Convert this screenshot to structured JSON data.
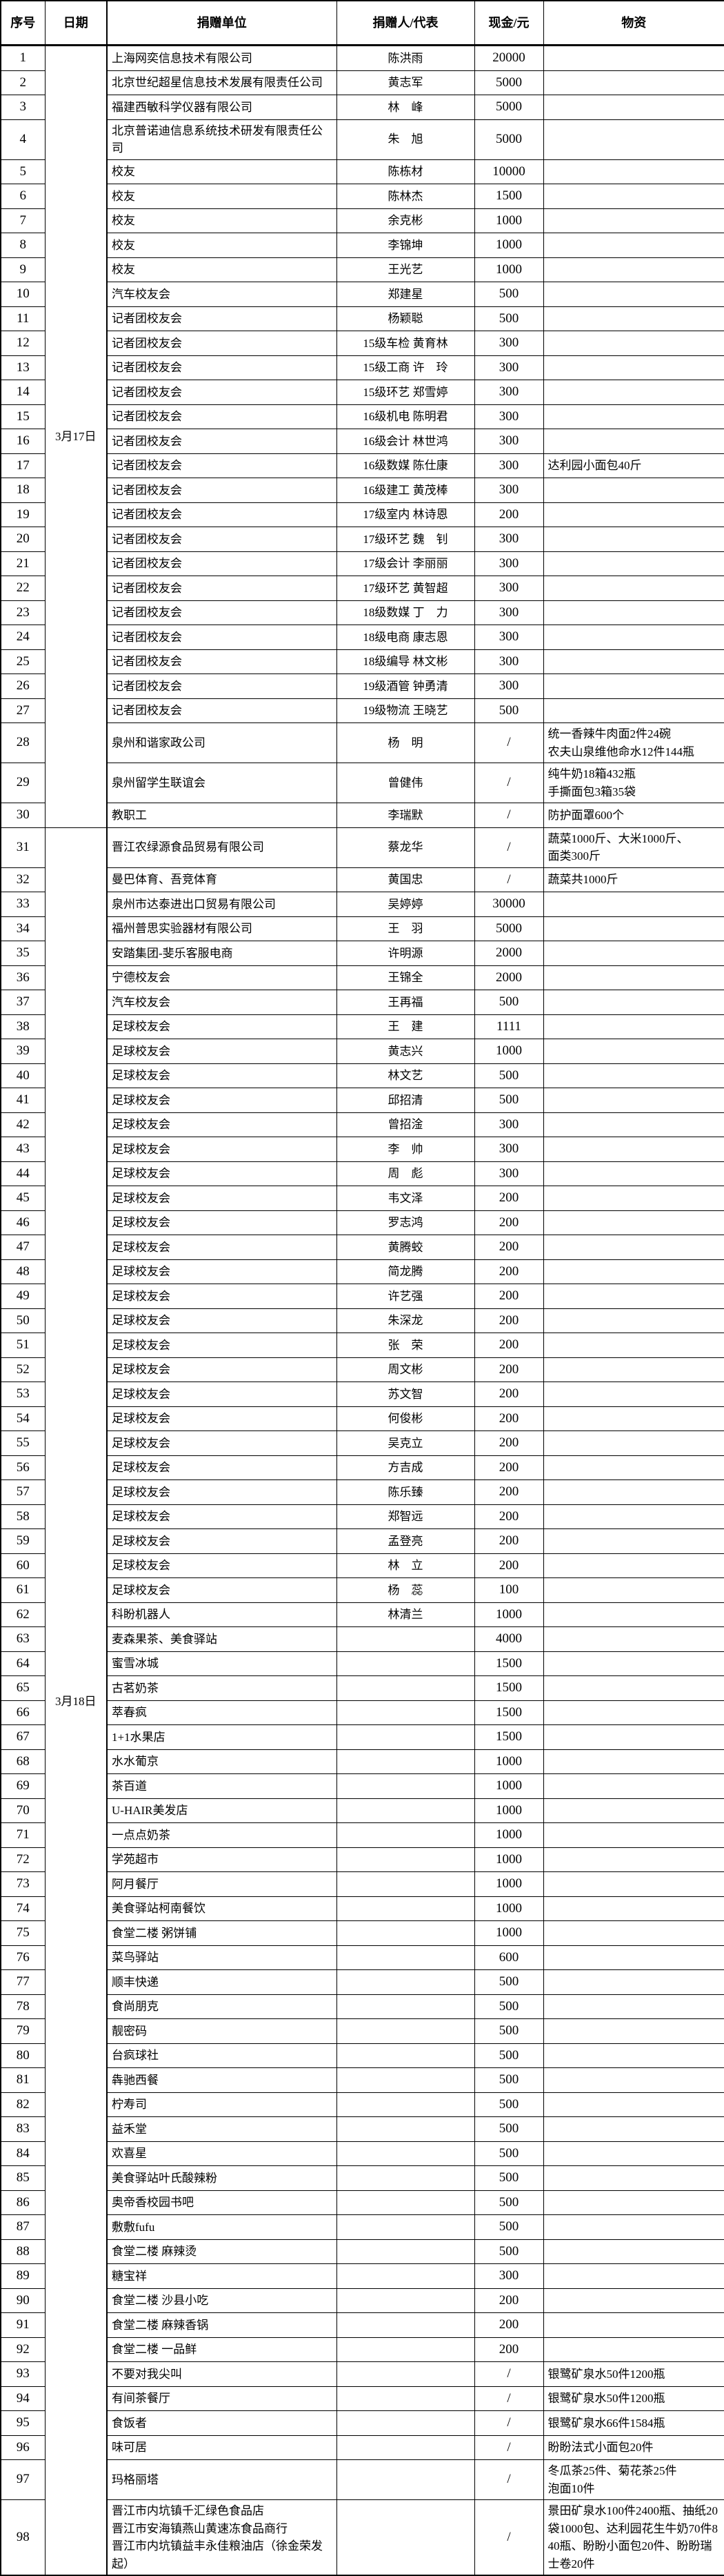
{
  "table": {
    "columns": [
      "序号",
      "日期",
      "捐赠单位",
      "捐赠人/代表",
      "现金/元",
      "物资"
    ],
    "date_groups": [
      {
        "label": "3月17日",
        "from": 1,
        "to": 30
      },
      {
        "label": "3月18日",
        "from": 31,
        "to": 98
      }
    ],
    "rows": [
      {
        "no": 1,
        "unit": "上海网奕信息技术有限公司",
        "rep": "陈洪雨",
        "cash": "20000",
        "goods": ""
      },
      {
        "no": 2,
        "unit": "北京世纪超星信息技术发展有限责任公司",
        "rep": "黄志军",
        "cash": "5000",
        "goods": ""
      },
      {
        "no": 3,
        "unit": "福建西敏科学仪器有限公司",
        "rep": "林　峰",
        "cash": "5000",
        "goods": ""
      },
      {
        "no": 4,
        "unit": "北京普诺迪信息系统技术研发有限责任公司",
        "rep": "朱　旭",
        "cash": "5000",
        "goods": ""
      },
      {
        "no": 5,
        "unit": "校友",
        "rep": "陈栋材",
        "cash": "10000",
        "goods": ""
      },
      {
        "no": 6,
        "unit": "校友",
        "rep": "陈林杰",
        "cash": "1500",
        "goods": ""
      },
      {
        "no": 7,
        "unit": "校友",
        "rep": "余克彬",
        "cash": "1000",
        "goods": ""
      },
      {
        "no": 8,
        "unit": "校友",
        "rep": "李锦坤",
        "cash": "1000",
        "goods": ""
      },
      {
        "no": 9,
        "unit": "校友",
        "rep": "王光艺",
        "cash": "1000",
        "goods": ""
      },
      {
        "no": 10,
        "unit": "汽车校友会",
        "rep": "郑建星",
        "cash": "500",
        "goods": ""
      },
      {
        "no": 11,
        "unit": "记者团校友会",
        "rep": "杨颖聪",
        "cash": "500",
        "goods": ""
      },
      {
        "no": 12,
        "unit": "记者团校友会",
        "rep": "15级车检 黄育林",
        "cash": "300",
        "goods": ""
      },
      {
        "no": 13,
        "unit": "记者团校友会",
        "rep": "15级工商 许　玲",
        "cash": "300",
        "goods": ""
      },
      {
        "no": 14,
        "unit": "记者团校友会",
        "rep": "15级环艺 郑雪婷",
        "cash": "300",
        "goods": ""
      },
      {
        "no": 15,
        "unit": "记者团校友会",
        "rep": "16级机电 陈明君",
        "cash": "300",
        "goods": ""
      },
      {
        "no": 16,
        "unit": "记者团校友会",
        "rep": "16级会计 林世鸿",
        "cash": "300",
        "goods": ""
      },
      {
        "no": 17,
        "unit": "记者团校友会",
        "rep": "16级数媒 陈仕康",
        "cash": "300",
        "goods": "达利园小面包40斤"
      },
      {
        "no": 18,
        "unit": "记者团校友会",
        "rep": "16级建工 黄茂棒",
        "cash": "300",
        "goods": ""
      },
      {
        "no": 19,
        "unit": "记者团校友会",
        "rep": "17级室内 林诗恩",
        "cash": "200",
        "goods": ""
      },
      {
        "no": 20,
        "unit": "记者团校友会",
        "rep": "17级环艺 魏　钊",
        "cash": "300",
        "goods": ""
      },
      {
        "no": 21,
        "unit": "记者团校友会",
        "rep": "17级会计 李丽丽",
        "cash": "300",
        "goods": ""
      },
      {
        "no": 22,
        "unit": "记者团校友会",
        "rep": "17级环艺 黄智超",
        "cash": "300",
        "goods": ""
      },
      {
        "no": 23,
        "unit": "记者团校友会",
        "rep": "18级数媒 丁　力",
        "cash": "300",
        "goods": ""
      },
      {
        "no": 24,
        "unit": "记者团校友会",
        "rep": "18级电商 康志恩",
        "cash": "300",
        "goods": ""
      },
      {
        "no": 25,
        "unit": "记者团校友会",
        "rep": "18级编导 林文彬",
        "cash": "300",
        "goods": ""
      },
      {
        "no": 26,
        "unit": "记者团校友会",
        "rep": "19级酒管 钟勇清",
        "cash": "300",
        "goods": ""
      },
      {
        "no": 27,
        "unit": "记者团校友会",
        "rep": "19级物流 王晓艺",
        "cash": "500",
        "goods": ""
      },
      {
        "no": 28,
        "unit": "泉州和谐家政公司",
        "rep": "杨　明",
        "cash": "/",
        "goods": "统一香辣牛肉面2件24碗\n农夫山泉维他命水12件144瓶"
      },
      {
        "no": 29,
        "unit": "泉州留学生联谊会",
        "rep": "曾健伟",
        "cash": "/",
        "goods": "纯牛奶18箱432瓶\n手撕面包3箱35袋"
      },
      {
        "no": 30,
        "unit": "教职工",
        "rep": "李瑞默",
        "cash": "/",
        "goods": "防护面罩600个"
      },
      {
        "no": 31,
        "unit": "晋江农绿源食品贸易有限公司",
        "rep": "蔡龙华",
        "cash": "/",
        "goods": "蔬菜1000斤、大米1000斤、\n面类300斤"
      },
      {
        "no": 32,
        "unit": "曼巴体育、吾竞体育",
        "rep": "黄国忠",
        "cash": "/",
        "goods": "蔬菜共1000斤"
      },
      {
        "no": 33,
        "unit": "泉州市达泰进出口贸易有限公司",
        "rep": "吴婷婷",
        "cash": "30000",
        "goods": ""
      },
      {
        "no": 34,
        "unit": "福州普思实验器材有限公司",
        "rep": "王　羽",
        "cash": "5000",
        "goods": ""
      },
      {
        "no": 35,
        "unit": "安踏集团-斐乐客服电商",
        "rep": "许明源",
        "cash": "2000",
        "goods": ""
      },
      {
        "no": 36,
        "unit": "宁德校友会",
        "rep": "王锦全",
        "cash": "2000",
        "goods": ""
      },
      {
        "no": 37,
        "unit": "汽车校友会",
        "rep": "王再福",
        "cash": "500",
        "goods": ""
      },
      {
        "no": 38,
        "unit": "足球校友会",
        "rep": "王　建",
        "cash": "1111",
        "goods": ""
      },
      {
        "no": 39,
        "unit": "足球校友会",
        "rep": "黄志兴",
        "cash": "1000",
        "goods": ""
      },
      {
        "no": 40,
        "unit": "足球校友会",
        "rep": "林文艺",
        "cash": "500",
        "goods": ""
      },
      {
        "no": 41,
        "unit": "足球校友会",
        "rep": "邱招清",
        "cash": "500",
        "goods": ""
      },
      {
        "no": 42,
        "unit": "足球校友会",
        "rep": "曾招淦",
        "cash": "300",
        "goods": ""
      },
      {
        "no": 43,
        "unit": "足球校友会",
        "rep": "李　帅",
        "cash": "300",
        "goods": ""
      },
      {
        "no": 44,
        "unit": "足球校友会",
        "rep": "周　彪",
        "cash": "300",
        "goods": ""
      },
      {
        "no": 45,
        "unit": "足球校友会",
        "rep": "韦文泽",
        "cash": "200",
        "goods": ""
      },
      {
        "no": 46,
        "unit": "足球校友会",
        "rep": "罗志鸿",
        "cash": "200",
        "goods": ""
      },
      {
        "no": 47,
        "unit": "足球校友会",
        "rep": "黄腾蛟",
        "cash": "200",
        "goods": ""
      },
      {
        "no": 48,
        "unit": "足球校友会",
        "rep": "简龙腾",
        "cash": "200",
        "goods": ""
      },
      {
        "no": 49,
        "unit": "足球校友会",
        "rep": "许艺强",
        "cash": "200",
        "goods": ""
      },
      {
        "no": 50,
        "unit": "足球校友会",
        "rep": "朱深龙",
        "cash": "200",
        "goods": ""
      },
      {
        "no": 51,
        "unit": "足球校友会",
        "rep": "张　荣",
        "cash": "200",
        "goods": ""
      },
      {
        "no": 52,
        "unit": "足球校友会",
        "rep": "周文彬",
        "cash": "200",
        "goods": ""
      },
      {
        "no": 53,
        "unit": "足球校友会",
        "rep": "苏文智",
        "cash": "200",
        "goods": ""
      },
      {
        "no": 54,
        "unit": "足球校友会",
        "rep": "何俊彬",
        "cash": "200",
        "goods": ""
      },
      {
        "no": 55,
        "unit": "足球校友会",
        "rep": "吴克立",
        "cash": "200",
        "goods": ""
      },
      {
        "no": 56,
        "unit": "足球校友会",
        "rep": "方吉成",
        "cash": "200",
        "goods": ""
      },
      {
        "no": 57,
        "unit": "足球校友会",
        "rep": "陈乐臻",
        "cash": "200",
        "goods": ""
      },
      {
        "no": 58,
        "unit": "足球校友会",
        "rep": "郑智远",
        "cash": "200",
        "goods": ""
      },
      {
        "no": 59,
        "unit": "足球校友会",
        "rep": "孟登亮",
        "cash": "200",
        "goods": ""
      },
      {
        "no": 60,
        "unit": "足球校友会",
        "rep": "林　立",
        "cash": "200",
        "goods": ""
      },
      {
        "no": 61,
        "unit": "足球校友会",
        "rep": "杨　蕊",
        "cash": "100",
        "goods": ""
      },
      {
        "no": 62,
        "unit": "科盼机器人",
        "rep": "林清兰",
        "cash": "1000",
        "goods": ""
      },
      {
        "no": 63,
        "unit": "麦森果茶、美食驿站",
        "rep": "",
        "cash": "4000",
        "goods": ""
      },
      {
        "no": 64,
        "unit": "蜜雪冰城",
        "rep": "",
        "cash": "1500",
        "goods": ""
      },
      {
        "no": 65,
        "unit": "古茗奶茶",
        "rep": "",
        "cash": "1500",
        "goods": ""
      },
      {
        "no": 66,
        "unit": "萃春疯",
        "rep": "",
        "cash": "1500",
        "goods": ""
      },
      {
        "no": 67,
        "unit": "1+1水果店",
        "rep": "",
        "cash": "1500",
        "goods": ""
      },
      {
        "no": 68,
        "unit": "水水葡京",
        "rep": "",
        "cash": "1000",
        "goods": ""
      },
      {
        "no": 69,
        "unit": "茶百道",
        "rep": "",
        "cash": "1000",
        "goods": ""
      },
      {
        "no": 70,
        "unit": "U-HAIR美发店",
        "rep": "",
        "cash": "1000",
        "goods": ""
      },
      {
        "no": 71,
        "unit": "一点点奶茶",
        "rep": "",
        "cash": "1000",
        "goods": ""
      },
      {
        "no": 72,
        "unit": "学苑超市",
        "rep": "",
        "cash": "1000",
        "goods": ""
      },
      {
        "no": 73,
        "unit": "阿月餐厅",
        "rep": "",
        "cash": "1000",
        "goods": ""
      },
      {
        "no": 74,
        "unit": "美食驿站柯南餐饮",
        "rep": "",
        "cash": "1000",
        "goods": ""
      },
      {
        "no": 75,
        "unit": "食堂二楼 粥饼铺",
        "rep": "",
        "cash": "1000",
        "goods": ""
      },
      {
        "no": 76,
        "unit": "菜鸟驿站",
        "rep": "",
        "cash": "600",
        "goods": ""
      },
      {
        "no": 77,
        "unit": "顺丰快递",
        "rep": "",
        "cash": "500",
        "goods": ""
      },
      {
        "no": 78,
        "unit": "食尚朋克",
        "rep": "",
        "cash": "500",
        "goods": ""
      },
      {
        "no": 79,
        "unit": "靓密码",
        "rep": "",
        "cash": "500",
        "goods": ""
      },
      {
        "no": 80,
        "unit": "台疯球社",
        "rep": "",
        "cash": "500",
        "goods": ""
      },
      {
        "no": 81,
        "unit": "犇驰西餐",
        "rep": "",
        "cash": "500",
        "goods": ""
      },
      {
        "no": 82,
        "unit": "柠寿司",
        "rep": "",
        "cash": "500",
        "goods": ""
      },
      {
        "no": 83,
        "unit": "益禾堂",
        "rep": "",
        "cash": "500",
        "goods": ""
      },
      {
        "no": 84,
        "unit": "欢喜星",
        "rep": "",
        "cash": "500",
        "goods": ""
      },
      {
        "no": 85,
        "unit": "美食驿站叶氏酸辣粉",
        "rep": "",
        "cash": "500",
        "goods": ""
      },
      {
        "no": 86,
        "unit": "奥帝香校园书吧",
        "rep": "",
        "cash": "500",
        "goods": ""
      },
      {
        "no": 87,
        "unit": "敷敷fufu",
        "rep": "",
        "cash": "500",
        "goods": ""
      },
      {
        "no": 88,
        "unit": "食堂二楼 麻辣烫",
        "rep": "",
        "cash": "500",
        "goods": ""
      },
      {
        "no": 89,
        "unit": "糖宝祥",
        "rep": "",
        "cash": "300",
        "goods": ""
      },
      {
        "no": 90,
        "unit": "食堂二楼 沙县小吃",
        "rep": "",
        "cash": "200",
        "goods": ""
      },
      {
        "no": 91,
        "unit": "食堂二楼 麻辣香锅",
        "rep": "",
        "cash": "200",
        "goods": ""
      },
      {
        "no": 92,
        "unit": "食堂二楼 一品鲜",
        "rep": "",
        "cash": "200",
        "goods": ""
      },
      {
        "no": 93,
        "unit": "不要对我尖叫",
        "rep": "",
        "cash": "/",
        "goods": "银鹭矿泉水50件1200瓶"
      },
      {
        "no": 94,
        "unit": "有间茶餐厅",
        "rep": "",
        "cash": "/",
        "goods": "银鹭矿泉水50件1200瓶"
      },
      {
        "no": 95,
        "unit": "食饭者",
        "rep": "",
        "cash": "/",
        "goods": "银鹭矿泉水66件1584瓶"
      },
      {
        "no": 96,
        "unit": "味可居",
        "rep": "",
        "cash": "/",
        "goods": "盼盼法式小面包20件"
      },
      {
        "no": 97,
        "unit": "玛格丽塔",
        "rep": "",
        "cash": "/",
        "goods": "冬瓜茶25件、菊花茶25件\n泡面10件"
      },
      {
        "no": 98,
        "unit": "晋江市内坑镇千汇绿色食品店\n晋江市安海镇燕山黄速冻食品商行\n晋江市内坑镇益丰永佳粮油店（徐金荣发起）",
        "rep": "",
        "cash": "/",
        "goods": "景田矿泉水100件2400瓶、抽纸20袋1000包、达利园花生牛奶70件840瓶、盼盼小面包20件、盼盼瑞士卷20件"
      }
    ]
  }
}
